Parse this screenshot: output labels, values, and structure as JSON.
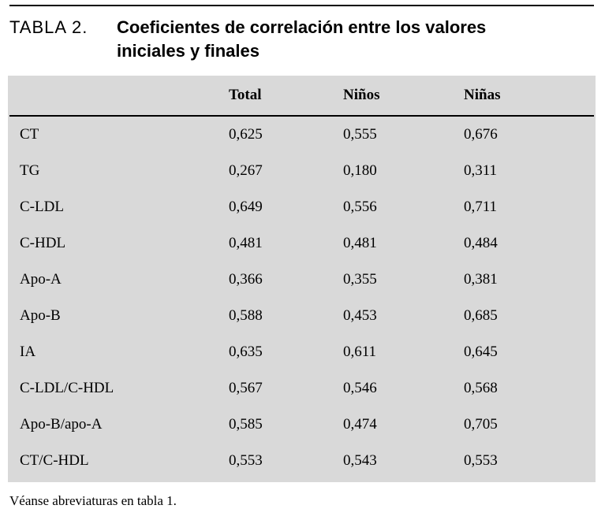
{
  "caption": {
    "label": "TABLA 2.",
    "lines": [
      "Coeficientes de correlación entre los valores",
      "iniciales y finales"
    ]
  },
  "table": {
    "columns": [
      "Total",
      "Niños",
      "Niñas"
    ],
    "rows": [
      {
        "label": "CT",
        "values": [
          "0,625",
          "0,555",
          "0,676"
        ]
      },
      {
        "label": "TG",
        "values": [
          "0,267",
          "0,180",
          "0,311"
        ]
      },
      {
        "label": "C-LDL",
        "values": [
          "0,649",
          "0,556",
          "0,711"
        ]
      },
      {
        "label": "C-HDL",
        "values": [
          "0,481",
          "0,481",
          "0,484"
        ]
      },
      {
        "label": "Apo-A",
        "values": [
          "0,366",
          "0,355",
          "0,381"
        ]
      },
      {
        "label": "Apo-B",
        "values": [
          "0,588",
          "0,453",
          "0,685"
        ]
      },
      {
        "label": "IA",
        "values": [
          "0,635",
          "0,611",
          "0,645"
        ]
      },
      {
        "label": "C-LDL/C-HDL",
        "values": [
          "0,567",
          "0,546",
          "0,568"
        ]
      },
      {
        "label": "Apo-B/apo-A",
        "values": [
          "0,585",
          "0,474",
          "0,705"
        ]
      },
      {
        "label": "CT/C-HDL",
        "values": [
          "0,553",
          "0,543",
          "0,553"
        ]
      }
    ]
  },
  "footnote": "Véanse abreviaturas en tabla 1."
}
